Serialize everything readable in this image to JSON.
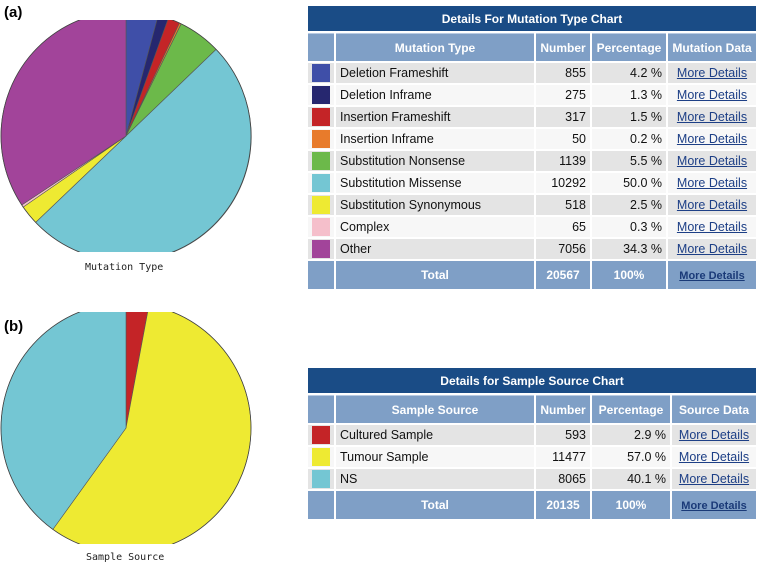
{
  "panels": {
    "a": "(a)",
    "b": "(b)"
  },
  "chart_data": [
    {
      "type": "pie",
      "title": "Mutation Type",
      "categories": [
        "Deletion Frameshift",
        "Deletion Inframe",
        "Insertion Frameshift",
        "Insertion Inframe",
        "Substitution Nonsense",
        "Substitution Missense",
        "Substitution Synonymous",
        "Complex",
        "Other"
      ],
      "values": [
        855,
        275,
        317,
        50,
        1139,
        10292,
        518,
        65,
        7056
      ],
      "colors": [
        "#3f4fa8",
        "#26276f",
        "#c42427",
        "#e87b2b",
        "#6cb94a",
        "#74c6d3",
        "#eeea32",
        "#f5bfcb",
        "#a2449a"
      ],
      "start": "12 o'clock",
      "direction": "clockwise"
    },
    {
      "type": "pie",
      "title": "Sample Source",
      "categories": [
        "Cultured Sample",
        "Tumour Sample",
        "NS"
      ],
      "values": [
        593,
        11477,
        8065
      ],
      "colors": [
        "#c42427",
        "#eeea32",
        "#74c6d3"
      ],
      "start": "12 o'clock",
      "direction": "clockwise"
    }
  ],
  "mutation_table": {
    "title": "Details For Mutation Type Chart",
    "columns": [
      "Mutation Type",
      "Number",
      "Percentage",
      "Mutation Data"
    ],
    "rows": [
      {
        "color": "#3f4fa8",
        "label": "Deletion Frameshift",
        "number": "855",
        "pct": "4.2 %",
        "link": "More Details"
      },
      {
        "color": "#26276f",
        "label": "Deletion Inframe",
        "number": "275",
        "pct": "1.3 %",
        "link": "More Details"
      },
      {
        "color": "#c42427",
        "label": "Insertion Frameshift",
        "number": "317",
        "pct": "1.5 %",
        "link": "More Details"
      },
      {
        "color": "#e87b2b",
        "label": "Insertion Inframe",
        "number": "50",
        "pct": "0.2 %",
        "link": "More Details"
      },
      {
        "color": "#6cb94a",
        "label": "Substitution Nonsense",
        "number": "1139",
        "pct": "5.5 %",
        "link": "More Details"
      },
      {
        "color": "#74c6d3",
        "label": "Substitution Missense",
        "number": "10292",
        "pct": "50.0 %",
        "link": "More Details"
      },
      {
        "color": "#eeea32",
        "label": "Substitution Synonymous",
        "number": "518",
        "pct": "2.5 %",
        "link": "More Details"
      },
      {
        "color": "#f5bfcb",
        "label": "Complex",
        "number": "65",
        "pct": "0.3 %",
        "link": "More Details"
      },
      {
        "color": "#a2449a",
        "label": "Other",
        "number": "7056",
        "pct": "34.3 %",
        "link": "More Details"
      }
    ],
    "total": {
      "label": "Total",
      "number": "20567",
      "pct": "100%",
      "link": "More Details"
    }
  },
  "source_table": {
    "title": "Details for Sample Source Chart",
    "columns": [
      "Sample Source",
      "Number",
      "Percentage",
      "Source Data"
    ],
    "rows": [
      {
        "color": "#c42427",
        "label": "Cultured Sample",
        "number": "593",
        "pct": "2.9 %",
        "link": "More Details"
      },
      {
        "color": "#eeea32",
        "label": "Tumour Sample",
        "number": "11477",
        "pct": "57.0 %",
        "link": "More Details"
      },
      {
        "color": "#74c6d3",
        "label": "NS",
        "number": "8065",
        "pct": "40.1 %",
        "link": "More Details"
      }
    ],
    "total": {
      "label": "Total",
      "number": "20135",
      "pct": "100%",
      "link": "More Details"
    }
  }
}
